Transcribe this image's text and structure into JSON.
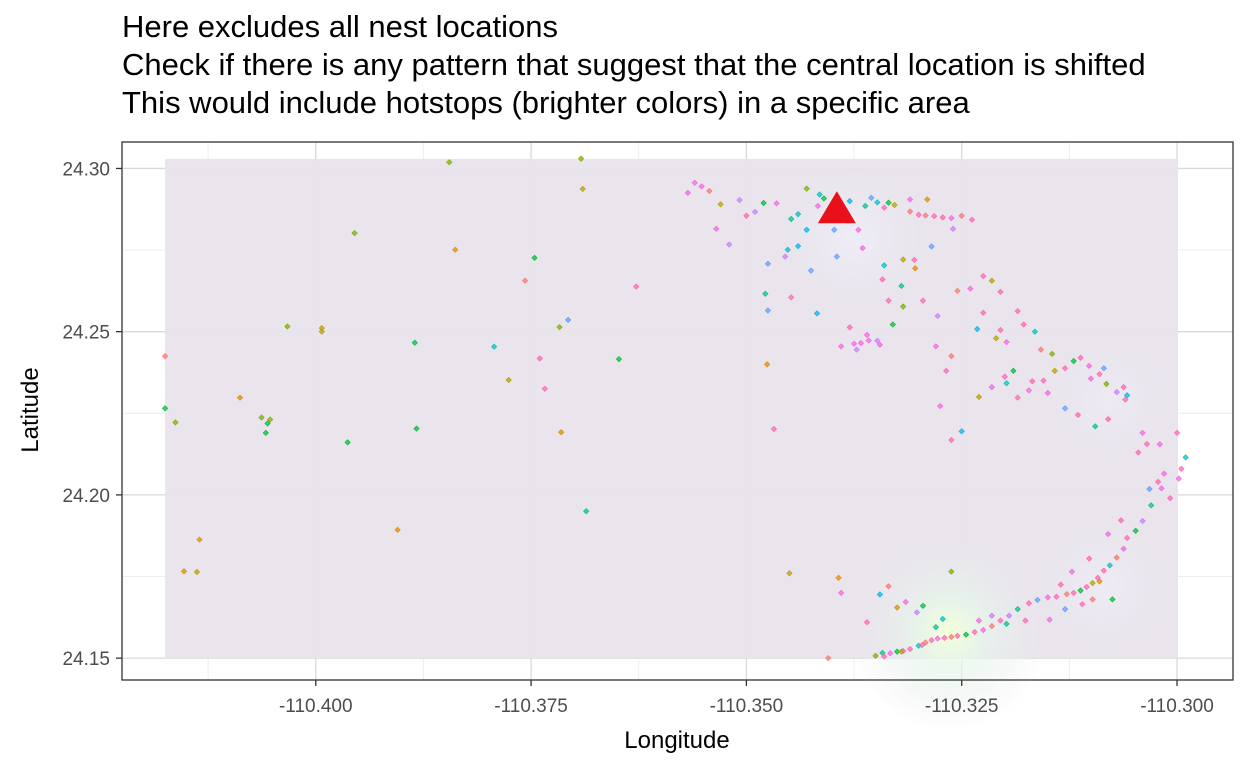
{
  "title_lines": [
    "Here excludes all nest locations",
    "Check if there is any pattern that suggest that the central location is shifted",
    "This would include hotstops (brighter colors) in a specific area"
  ],
  "colors": {
    "background_rect": "#e9e4ec",
    "grid_major": "#d9d9d9",
    "grid_minor": "#eeeeee",
    "marker": "#e8101a",
    "palette": [
      "#f8766d",
      "#de8c00",
      "#b79f00",
      "#7cae00",
      "#00ba38",
      "#00c08b",
      "#00bfc4",
      "#00b4f0",
      "#619cff",
      "#c77cff",
      "#f564e3",
      "#ff64b0"
    ]
  },
  "chart_data": {
    "type": "scatter",
    "xlabel": "Longitude",
    "ylabel": "Latitude",
    "xlim": [
      -110.4225,
      -110.2935
    ],
    "ylim": [
      24.1433,
      24.3081
    ],
    "x_ticks": [
      -110.4,
      -110.375,
      -110.35,
      -110.325,
      -110.3
    ],
    "x_tick_labels": [
      "-110.400",
      "-110.375",
      "-110.350",
      "-110.325",
      "-110.300"
    ],
    "y_ticks": [
      24.15,
      24.2,
      24.25,
      24.3
    ],
    "y_tick_labels": [
      "24.15",
      "24.20",
      "24.25",
      "24.30"
    ],
    "grid": true,
    "density_background": {
      "x_range": [
        -110.4175,
        -110.2999
      ],
      "y_range": [
        24.15,
        24.3029
      ]
    },
    "hotspots": [
      {
        "x": -110.3265,
        "y": 24.158,
        "intensity": 1.0
      },
      {
        "x": -110.3375,
        "y": 24.2785,
        "intensity": 0.55
      },
      {
        "x": -110.3085,
        "y": 24.172,
        "intensity": 0.45
      },
      {
        "x": -110.308,
        "y": 24.229,
        "intensity": 0.35
      }
    ],
    "central_marker": {
      "x": -110.3395,
      "y": 24.2875,
      "shape": "triangle"
    },
    "points": [
      [
        -110.4175,
        24.2425,
        0
      ],
      [
        -110.4175,
        24.2265,
        4
      ],
      [
        -110.4163,
        24.2222,
        3
      ],
      [
        -110.4153,
        24.1766,
        1
      ],
      [
        -110.4138,
        24.1764,
        2
      ],
      [
        -110.4135,
        24.1863,
        1
      ],
      [
        -110.4088,
        24.2298,
        1
      ],
      [
        -110.4063,
        24.2237,
        3
      ],
      [
        -110.4056,
        24.2219,
        4
      ],
      [
        -110.4053,
        24.2231,
        3
      ],
      [
        -110.4058,
        24.219,
        4
      ],
      [
        -110.4033,
        24.2516,
        3
      ],
      [
        -110.3993,
        24.2511,
        2
      ],
      [
        -110.3993,
        24.25,
        2
      ],
      [
        -110.3963,
        24.2161,
        4
      ],
      [
        -110.3955,
        24.2802,
        3
      ],
      [
        -110.3905,
        24.1893,
        1
      ],
      [
        -110.3885,
        24.2466,
        4
      ],
      [
        -110.3883,
        24.2203,
        4
      ],
      [
        -110.3845,
        24.3019,
        3
      ],
      [
        -110.3838,
        24.2751,
        1
      ],
      [
        -110.3793,
        24.2454,
        6
      ],
      [
        -110.3776,
        24.2352,
        2
      ],
      [
        -110.3757,
        24.2656,
        0
      ],
      [
        -110.3746,
        24.2726,
        4
      ],
      [
        -110.374,
        24.2418,
        11
      ],
      [
        -110.3734,
        24.2325,
        11
      ],
      [
        -110.3717,
        24.2514,
        3
      ],
      [
        -110.3715,
        24.2192,
        1
      ],
      [
        -110.3707,
        24.2536,
        8
      ],
      [
        -110.3692,
        24.303,
        3
      ],
      [
        -110.369,
        24.2937,
        2
      ],
      [
        -110.3686,
        24.195,
        5
      ],
      [
        -110.3648,
        24.2416,
        4
      ],
      [
        -110.3628,
        24.2638,
        11
      ],
      [
        -110.356,
        24.2956,
        10
      ],
      [
        -110.3552,
        24.2945,
        10
      ],
      [
        -110.3543,
        24.2931,
        0
      ],
      [
        -110.3535,
        24.2815,
        10
      ],
      [
        -110.3508,
        24.2903,
        9
      ],
      [
        -110.349,
        24.2867,
        9
      ],
      [
        -110.352,
        24.2767,
        9
      ],
      [
        -110.348,
        24.2894,
        4
      ],
      [
        -110.3478,
        24.2616,
        5
      ],
      [
        -110.3476,
        24.24,
        1
      ],
      [
        -110.3468,
        24.2202,
        11
      ],
      [
        -110.3452,
        24.2751,
        6
      ],
      [
        -110.3448,
        24.2845,
        5
      ],
      [
        -110.343,
        24.2938,
        3
      ],
      [
        -110.343,
        24.2812,
        7
      ],
      [
        -110.3418,
        24.2556,
        7
      ],
      [
        -110.3417,
        24.2885,
        10
      ],
      [
        -110.3415,
        24.292,
        6
      ],
      [
        -110.341,
        24.2908,
        4
      ],
      [
        -110.3404,
        24.2866,
        9
      ],
      [
        -110.3398,
        24.2812,
        8
      ],
      [
        -110.3382,
        24.284,
        6
      ],
      [
        -110.337,
        24.2812,
        10
      ],
      [
        -110.338,
        24.29,
        7
      ],
      [
        -110.3362,
        24.2885,
        5
      ],
      [
        -110.3355,
        24.291,
        8
      ],
      [
        -110.3348,
        24.2896,
        6
      ],
      [
        -110.334,
        24.288,
        11
      ],
      [
        -110.3335,
        24.2895,
        4
      ],
      [
        -110.3328,
        24.2888,
        2
      ],
      [
        -110.331,
        24.2868,
        0
      ],
      [
        -110.33,
        24.2858,
        11
      ],
      [
        -110.3292,
        24.2856,
        0
      ],
      [
        -110.3282,
        24.2854,
        11
      ],
      [
        -110.3272,
        24.285,
        11
      ],
      [
        -110.3262,
        24.2848,
        10
      ],
      [
        -110.325,
        24.2855,
        0
      ],
      [
        -110.3238,
        24.2843,
        11
      ],
      [
        -110.326,
        24.2815,
        9
      ],
      [
        -110.3285,
        24.2761,
        8
      ],
      [
        -110.3318,
        24.2721,
        2
      ],
      [
        -110.334,
        24.2703,
        6
      ],
      [
        -110.3304,
        24.2694,
        1
      ],
      [
        -110.3342,
        24.266,
        11
      ],
      [
        -110.3365,
        24.2756,
        10
      ],
      [
        -110.3395,
        24.273,
        8
      ],
      [
        -110.3425,
        24.2687,
        8
      ],
      [
        -110.344,
        24.2762,
        7
      ],
      [
        -110.3455,
        24.273,
        9
      ],
      [
        -110.3475,
        24.2708,
        8
      ],
      [
        -110.338,
        24.2513,
        11
      ],
      [
        -110.3375,
        24.2463,
        10
      ],
      [
        -110.3367,
        24.2465,
        10
      ],
      [
        -110.3358,
        24.2473,
        10
      ],
      [
        -110.3348,
        24.2472,
        9
      ],
      [
        -110.333,
        24.2522,
        4
      ],
      [
        -110.3318,
        24.2577,
        3
      ],
      [
        -110.3295,
        24.2595,
        11
      ],
      [
        -110.3278,
        24.2548,
        9
      ],
      [
        -110.3255,
        24.2625,
        0
      ],
      [
        -110.324,
        24.2632,
        10
      ],
      [
        -110.3225,
        24.267,
        11
      ],
      [
        -110.3215,
        24.2656,
        2
      ],
      [
        -110.3205,
        24.2622,
        11
      ],
      [
        -110.3225,
        24.2558,
        11
      ],
      [
        -110.3232,
        24.2508,
        7
      ],
      [
        -110.321,
        24.248,
        2
      ],
      [
        -110.3198,
        24.2468,
        10
      ],
      [
        -110.3185,
        24.2563,
        11
      ],
      [
        -110.3178,
        24.2522,
        11
      ],
      [
        -110.3165,
        24.25,
        6
      ],
      [
        -110.3158,
        24.2445,
        0
      ],
      [
        -110.3145,
        24.2432,
        3
      ],
      [
        -110.313,
        24.2388,
        11
      ],
      [
        -110.312,
        24.241,
        4
      ],
      [
        -110.3112,
        24.242,
        11
      ],
      [
        -110.3102,
        24.2395,
        10
      ],
      [
        -110.309,
        24.237,
        11
      ],
      [
        -110.3082,
        24.234,
        3
      ],
      [
        -110.307,
        24.2315,
        9
      ],
      [
        -110.3062,
        24.233,
        11
      ],
      [
        -110.3058,
        24.2305,
        7
      ],
      [
        -110.308,
        24.2232,
        11
      ],
      [
        -110.3095,
        24.221,
        5
      ],
      [
        -110.3115,
        24.2245,
        11
      ],
      [
        -110.313,
        24.2265,
        8
      ],
      [
        -110.315,
        24.2312,
        10
      ],
      [
        -110.3168,
        24.2348,
        11
      ],
      [
        -110.319,
        24.238,
        4
      ],
      [
        -110.32,
        24.2362,
        11
      ],
      [
        -110.3215,
        24.233,
        10
      ],
      [
        -110.323,
        24.23,
        2
      ],
      [
        -110.325,
        24.2195,
        7
      ],
      [
        -110.3262,
        24.2168,
        11
      ],
      [
        -110.3275,
        24.2272,
        10
      ],
      [
        -110.304,
        24.219,
        10
      ],
      [
        -110.3045,
        24.213,
        11
      ],
      [
        -110.3035,
        24.2156,
        11
      ],
      [
        -110.302,
        24.2155,
        10
      ],
      [
        -110.3,
        24.219,
        11
      ],
      [
        -110.2998,
        24.205,
        10
      ],
      [
        -110.2995,
        24.208,
        11
      ],
      [
        -110.299,
        24.2115,
        6
      ],
      [
        -110.3008,
        24.199,
        11
      ],
      [
        -110.3018,
        24.202,
        10
      ],
      [
        -110.303,
        24.1968,
        5
      ],
      [
        -110.304,
        24.192,
        9
      ],
      [
        -110.3048,
        24.189,
        4
      ],
      [
        -110.3058,
        24.1868,
        11
      ],
      [
        -110.3062,
        24.1835,
        10
      ],
      [
        -110.307,
        24.1808,
        0
      ],
      [
        -110.3078,
        24.1784,
        6
      ],
      [
        -110.3085,
        24.1768,
        11
      ],
      [
        -110.3092,
        24.1746,
        11
      ],
      [
        -110.3098,
        24.173,
        2
      ],
      [
        -110.3105,
        24.1718,
        11
      ],
      [
        -110.3112,
        24.1707,
        4
      ],
      [
        -110.312,
        24.17,
        11
      ],
      [
        -110.3128,
        24.1696,
        0
      ],
      [
        -110.314,
        24.1688,
        11
      ],
      [
        -110.315,
        24.1686,
        10
      ],
      [
        -110.3162,
        24.1678,
        8
      ],
      [
        -110.3172,
        24.1668,
        11
      ],
      [
        -110.3185,
        24.165,
        5
      ],
      [
        -110.3195,
        24.163,
        9
      ],
      [
        -110.3205,
        24.1615,
        11
      ],
      [
        -110.3215,
        24.1598,
        0
      ],
      [
        -110.3225,
        24.1586,
        10
      ],
      [
        -110.3235,
        24.158,
        11
      ],
      [
        -110.3245,
        24.1572,
        4
      ],
      [
        -110.3255,
        24.1568,
        11
      ],
      [
        -110.3262,
        24.1565,
        0
      ],
      [
        -110.327,
        24.1562,
        11
      ],
      [
        -110.3278,
        24.156,
        10
      ],
      [
        -110.3285,
        24.1555,
        11
      ],
      [
        -110.3292,
        24.1548,
        0
      ],
      [
        -110.33,
        24.1538,
        6
      ],
      [
        -110.331,
        24.1528,
        11
      ],
      [
        -110.3318,
        24.1522,
        11
      ],
      [
        -110.3325,
        24.152,
        4
      ],
      [
        -110.3333,
        24.1515,
        10
      ],
      [
        -110.3342,
        24.1516,
        5
      ],
      [
        -110.335,
        24.1507,
        3
      ],
      [
        -110.334,
        24.1505,
        11
      ],
      [
        -110.332,
        24.152,
        2
      ],
      [
        -110.3296,
        24.154,
        11
      ],
      [
        -110.328,
        24.1595,
        5
      ],
      [
        -110.3272,
        24.162,
        6
      ],
      [
        -110.3295,
        24.166,
        4
      ],
      [
        -110.3302,
        24.164,
        9
      ],
      [
        -110.3315,
        24.1672,
        10
      ],
      [
        -110.3325,
        24.1655,
        1
      ],
      [
        -110.3335,
        24.172,
        0
      ],
      [
        -110.3345,
        24.1695,
        7
      ],
      [
        -110.336,
        24.161,
        11
      ],
      [
        -110.339,
        24.17,
        10
      ],
      [
        -110.3393,
        24.1746,
        1
      ],
      [
        -110.345,
        24.176,
        2
      ],
      [
        -110.3405,
        24.15,
        0
      ],
      [
        -110.3262,
        24.1765,
        3
      ],
      [
        -110.323,
        24.1615,
        10
      ],
      [
        -110.3215,
        24.163,
        9
      ],
      [
        -110.3198,
        24.1605,
        5
      ],
      [
        -110.3176,
        24.1615,
        11
      ],
      [
        -110.3148,
        24.1618,
        10
      ],
      [
        -110.313,
        24.165,
        8
      ],
      [
        -110.311,
        24.1665,
        11
      ],
      [
        -110.3098,
        24.168,
        0
      ],
      [
        -110.3075,
        24.168,
        4
      ],
      [
        -110.309,
        24.1735,
        1
      ],
      [
        -110.3015,
        24.2065,
        10
      ],
      [
        -110.3022,
        24.204,
        11
      ],
      [
        -110.3032,
        24.2018,
        8
      ],
      [
        -110.3065,
        24.1922,
        11
      ],
      [
        -110.308,
        24.188,
        10
      ],
      [
        -110.3102,
        24.1805,
        11
      ],
      [
        -110.3122,
        24.1765,
        10
      ],
      [
        -110.3135,
        24.1725,
        11
      ],
      [
        -110.306,
        24.2292,
        11
      ],
      [
        -110.3085,
        24.2388,
        8
      ],
      [
        -110.31,
        24.2356,
        10
      ],
      [
        -110.3142,
        24.238,
        2
      ],
      [
        -110.3155,
        24.235,
        11
      ],
      [
        -110.3172,
        24.232,
        10
      ],
      [
        -110.3185,
        24.2298,
        11
      ],
      [
        -110.3198,
        24.2342,
        6
      ],
      [
        -110.3205,
        24.2505,
        11
      ],
      [
        -110.3262,
        24.2425,
        0
      ],
      [
        -110.3268,
        24.238,
        11
      ],
      [
        -110.328,
        24.2455,
        10
      ],
      [
        -110.3335,
        24.2595,
        11
      ],
      [
        -110.332,
        24.264,
        5
      ],
      [
        -110.3305,
        24.272,
        11
      ],
      [
        -110.3448,
        24.2605,
        11
      ],
      [
        -110.344,
        24.286,
        6
      ],
      [
        -110.3465,
        24.2893,
        10
      ],
      [
        -110.35,
        24.2855,
        11
      ],
      [
        -110.353,
        24.289,
        2
      ],
      [
        -110.3568,
        24.2925,
        10
      ],
      [
        -110.3475,
        24.2565,
        8
      ],
      [
        -110.339,
        24.2455,
        10
      ],
      [
        -110.336,
        24.249,
        10
      ],
      [
        -110.3345,
        24.246,
        10
      ],
      [
        -110.3372,
        24.2445,
        9
      ],
      [
        -110.329,
        24.2905,
        1
      ],
      [
        -110.331,
        24.2905,
        10
      ]
    ]
  }
}
